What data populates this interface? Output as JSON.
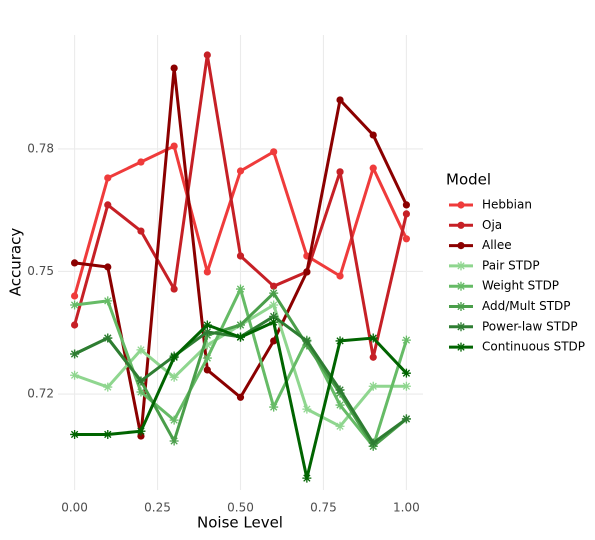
{
  "chart_data": {
    "type": "line",
    "x_label": "Noise Level",
    "y_label": "Accuracy",
    "legend_title": "Model",
    "x": [
      0,
      0.1,
      0.2,
      0.3,
      0.4,
      0.5,
      0.6,
      0.7,
      0.8,
      0.9,
      1.0
    ],
    "xlim": [
      -0.05,
      1.05
    ],
    "xticks": [
      {
        "value": 0,
        "label": "0.00"
      },
      {
        "value": 0.25,
        "label": "0.25"
      },
      {
        "value": 0.5,
        "label": "0.50"
      },
      {
        "value": 0.75,
        "label": "0.75"
      },
      {
        "value": 1,
        "label": "1.00"
      }
    ],
    "ylim": [
      0.6965,
      0.8079
    ],
    "yticks": [
      0.72,
      0.75,
      0.78
    ],
    "grid": true,
    "legend": "right",
    "series": [
      {
        "name": "Hebbian",
        "color": "#ef3b3b",
        "shape": "circle",
        "values": [
          0.744,
          0.7729,
          0.7768,
          0.7807,
          0.7499,
          0.7746,
          0.7793,
          0.7538,
          0.7489,
          0.7753,
          0.758
        ]
      },
      {
        "name": "Oja",
        "color": "#c62026",
        "shape": "circle",
        "values": [
          0.7369,
          0.7663,
          0.7599,
          0.7457,
          0.803,
          0.7538,
          0.7464,
          0.7499,
          0.7744,
          0.729,
          0.7641
        ]
      },
      {
        "name": "Allee",
        "color": "#8b0000",
        "shape": "circle",
        "values": [
          0.7521,
          0.7511,
          0.7097,
          0.7998,
          0.7259,
          0.7192,
          0.733,
          0.7499,
          0.792,
          0.7834,
          0.7663
        ]
      },
      {
        "name": "Pair STDP",
        "color": "#8fd68f",
        "shape": "star",
        "values": [
          0.7246,
          0.7217,
          0.7308,
          0.7241,
          0.732,
          0.7369,
          0.7418,
          0.7163,
          0.7121,
          0.7219,
          0.7219
        ]
      },
      {
        "name": "Weight STDP",
        "color": "#66bb66",
        "shape": "star",
        "values": [
          0.7418,
          0.7428,
          0.7205,
          0.7136,
          0.7288,
          0.7457,
          0.7168,
          0.7332,
          0.7173,
          0.7072,
          0.7332
        ]
      },
      {
        "name": "Add/Mult STDP",
        "color": "#4a9e4a",
        "shape": "star",
        "values": [
          0.7298,
          0.7337,
          0.7232,
          0.7085,
          0.7344,
          0.7369,
          0.7447,
          0.732,
          0.7202,
          0.7072,
          0.7139
        ]
      },
      {
        "name": "Power-law STDP",
        "color": "#2e7d32",
        "shape": "star",
        "values": [
          0.7298,
          0.7337,
          0.7232,
          0.7293,
          0.7352,
          0.734,
          0.739,
          0.733,
          0.721,
          0.708,
          0.7139
        ]
      },
      {
        "name": "Continuous STDP",
        "color": "#006400",
        "shape": "star",
        "values": [
          0.7101,
          0.7101,
          0.7109,
          0.729,
          0.7369,
          0.7339,
          0.7376,
          0.6994,
          0.733,
          0.7337,
          0.7251
        ]
      }
    ]
  }
}
